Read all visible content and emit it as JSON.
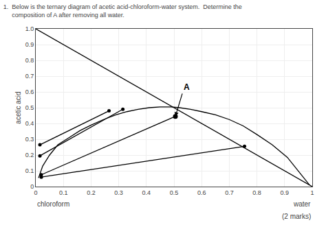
{
  "chart_data": {
    "type": "line",
    "title": "1.  Below is the ternary diagram of acetic acid-chloroform-water system.  Determine the\n     composition of A after removing all water.",
    "xlabel_left": "chloroform",
    "xlabel_right": "water",
    "ylabel": "acetic acid",
    "xlim": [
      0,
      1
    ],
    "ylim": [
      0,
      1
    ],
    "xticks": [
      0,
      0.1,
      0.2,
      0.3,
      0.4,
      0.5,
      0.6,
      0.7,
      0.8,
      0.9,
      1
    ],
    "yticks": [
      0,
      0.1,
      0.2,
      0.3,
      0.4,
      0.5,
      0.6,
      0.7,
      0.8,
      0.9,
      {
        "value": 1.0,
        "label": "1.0"
      }
    ],
    "grid": true,
    "series": [
      {
        "x": [
          0,
          1
        ],
        "values": [
          1,
          0
        ],
        "color": "#000000"
      },
      {
        "x": [
          0.01,
          0.025,
          0.05,
          0.08,
          0.12,
          0.16,
          0.2,
          0.245,
          0.29,
          0.33,
          0.37,
          0.41,
          0.45,
          0.49,
          0.52,
          0.56,
          0.6,
          0.65,
          0.7,
          0.75,
          0.8,
          0.855,
          0.91,
          0.95,
          0.99
        ],
        "values": [
          0.055,
          0.13,
          0.2,
          0.265,
          0.31,
          0.355,
          0.39,
          0.425,
          0.455,
          0.475,
          0.49,
          0.5,
          0.505,
          0.505,
          0.5,
          0.49,
          0.475,
          0.455,
          0.425,
          0.385,
          0.33,
          0.265,
          0.185,
          0.1,
          0.01
        ],
        "color": "#000000"
      },
      {
        "x": [
          0.015,
          0.265
        ],
        "values": [
          0.265,
          0.48
        ],
        "color": "#000000",
        "marker": "circle"
      },
      {
        "x": [
          0.015,
          0.315
        ],
        "values": [
          0.195,
          0.49
        ],
        "color": "#000000",
        "marker": "circle"
      },
      {
        "x": [
          0.02,
          0.505
        ],
        "values": [
          0.075,
          0.445
        ],
        "color": "#000000",
        "marker": "circle"
      },
      {
        "x": [
          0.02,
          0.755
        ],
        "values": [
          0.06,
          0.255
        ],
        "color": "#000000",
        "marker": "circle"
      },
      {
        "type": "scatter",
        "x": [
          0.505
        ],
        "values": [
          0.445
        ],
        "color": "#000000",
        "marker": "circle"
      }
    ],
    "annotations": [
      {
        "text": "A",
        "x": 0.505,
        "y": 0.445,
        "text_x": 0.53,
        "text_y": 0.59,
        "color": "#000000"
      },
      {
        "text": "(2 marks)"
      }
    ]
  }
}
